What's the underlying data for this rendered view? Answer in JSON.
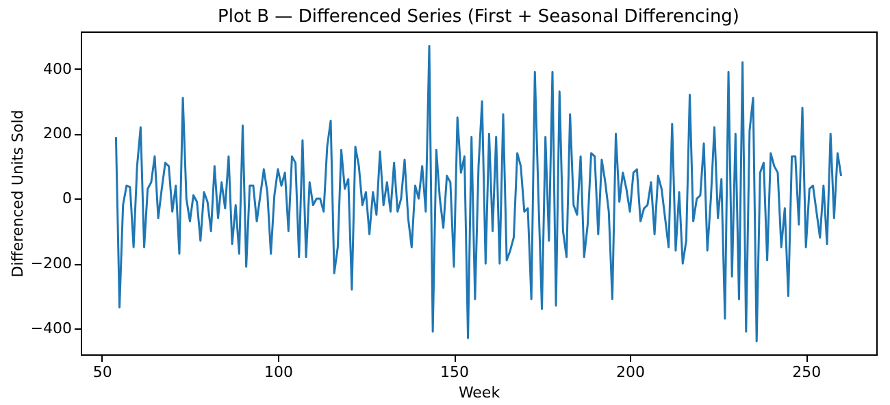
{
  "chart_data": {
    "type": "line",
    "title": "Plot B — Differenced Series (First + Seasonal Differencing)",
    "xlabel": "Week",
    "ylabel": "Differenced Units Sold",
    "x": [
      54,
      55,
      56,
      57,
      58,
      59,
      60,
      61,
      62,
      63,
      64,
      65,
      66,
      67,
      68,
      69,
      70,
      71,
      72,
      73,
      74,
      75,
      76,
      77,
      78,
      79,
      80,
      81,
      82,
      83,
      84,
      85,
      86,
      87,
      88,
      89,
      90,
      91,
      92,
      93,
      94,
      95,
      96,
      97,
      98,
      99,
      100,
      101,
      102,
      103,
      104,
      105,
      106,
      107,
      108,
      109,
      110,
      111,
      112,
      113,
      114,
      115,
      116,
      117,
      118,
      119,
      120,
      121,
      122,
      123,
      124,
      125,
      126,
      127,
      128,
      129,
      130,
      131,
      132,
      133,
      134,
      135,
      136,
      137,
      138,
      139,
      140,
      141,
      142,
      143,
      144,
      145,
      146,
      147,
      148,
      149,
      150,
      151,
      152,
      153,
      154,
      155,
      156,
      157,
      158,
      159,
      160,
      161,
      162,
      163,
      164,
      165,
      166,
      167,
      168,
      169,
      170,
      171,
      172,
      173,
      174,
      175,
      176,
      177,
      178,
      179,
      180,
      181,
      182,
      183,
      184,
      185,
      186,
      187,
      188,
      189,
      190,
      191,
      192,
      193,
      194,
      195,
      196,
      197,
      198,
      199,
      200,
      201,
      202,
      203,
      204,
      205,
      206,
      207,
      208,
      209,
      210,
      211,
      212,
      213,
      214,
      215,
      216,
      217,
      218,
      219,
      220,
      221,
      222,
      223,
      224,
      225,
      226,
      227,
      228,
      229,
      230,
      231,
      232,
      233,
      234,
      235,
      236,
      237,
      238,
      239,
      240,
      241,
      242,
      243,
      244,
      245,
      246,
      247,
      248,
      249,
      250,
      251,
      252,
      253,
      254,
      255,
      256,
      257,
      258,
      259,
      260
    ],
    "series": [
      {
        "color": "#1f77b4",
        "values": [
          190,
          -335,
          -20,
          40,
          35,
          -150,
          100,
          220,
          -150,
          30,
          50,
          130,
          -60,
          30,
          110,
          100,
          -40,
          40,
          -170,
          310,
          0,
          -70,
          10,
          -10,
          -130,
          20,
          -10,
          -100,
          100,
          -60,
          50,
          -30,
          130,
          -140,
          -20,
          -170,
          225,
          -210,
          40,
          40,
          -70,
          10,
          90,
          20,
          -170,
          10,
          90,
          40,
          80,
          -100,
          130,
          110,
          -180,
          180,
          -180,
          50,
          -20,
          0,
          0,
          -40,
          160,
          240,
          -230,
          -150,
          150,
          30,
          60,
          -280,
          160,
          100,
          -20,
          20,
          -110,
          20,
          -50,
          145,
          -20,
          50,
          -40,
          110,
          -40,
          0,
          120,
          -60,
          -150,
          40,
          0,
          100,
          -40,
          470,
          -410,
          150,
          0,
          -90,
          70,
          50,
          -210,
          250,
          80,
          130,
          -430,
          190,
          -310,
          100,
          300,
          -200,
          200,
          -100,
          190,
          -200,
          260,
          -190,
          -160,
          -120,
          140,
          100,
          -40,
          -30,
          -310,
          390,
          10,
          -340,
          190,
          -130,
          390,
          -330,
          330,
          -100,
          -180,
          260,
          -20,
          -50,
          130,
          -180,
          -80,
          140,
          130,
          -110,
          120,
          50,
          -40,
          -310,
          200,
          -10,
          80,
          30,
          -40,
          80,
          90,
          -70,
          -30,
          -20,
          50,
          -110,
          70,
          30,
          -60,
          -150,
          230,
          -160,
          20,
          -200,
          -130,
          320,
          -70,
          0,
          10,
          170,
          -160,
          0,
          220,
          -60,
          60,
          -370,
          390,
          -240,
          200,
          -310,
          420,
          -410,
          210,
          310,
          -440,
          80,
          110,
          -190,
          140,
          100,
          80,
          -150,
          -30,
          -300,
          130,
          130,
          -80,
          280,
          -150,
          30,
          40,
          -40,
          -120,
          40,
          -140,
          200,
          -60,
          140,
          70
        ]
      }
    ],
    "xlim": [
      44,
      270
    ],
    "xticks": [
      50,
      100,
      150,
      200,
      250
    ],
    "ylim": [
      -480,
      515
    ],
    "yticks": [
      -400,
      -200,
      0,
      200,
      400
    ],
    "grid": false,
    "marker": "none",
    "line_style": "solid"
  }
}
